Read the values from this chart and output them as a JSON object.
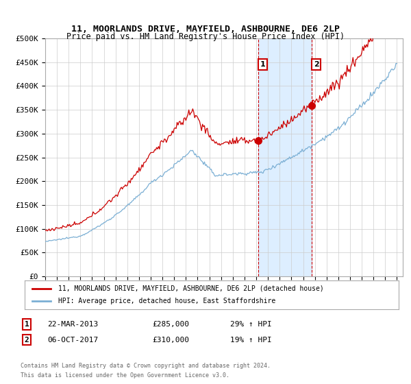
{
  "title": "11, MOORLANDS DRIVE, MAYFIELD, ASHBOURNE, DE6 2LP",
  "subtitle": "Price paid vs. HM Land Registry's House Price Index (HPI)",
  "ylabel_ticks": [
    "£0",
    "£50K",
    "£100K",
    "£150K",
    "£200K",
    "£250K",
    "£300K",
    "£350K",
    "£400K",
    "£450K",
    "£500K"
  ],
  "ytick_vals": [
    0,
    50000,
    100000,
    150000,
    200000,
    250000,
    300000,
    350000,
    400000,
    450000,
    500000
  ],
  "ylim": [
    0,
    500000
  ],
  "sale1_year": 2013,
  "sale1_month": 3,
  "sale1_price": 285000,
  "sale2_year": 2017,
  "sale2_month": 10,
  "sale2_price": 310000,
  "legend_house": "11, MOORLANDS DRIVE, MAYFIELD, ASHBOURNE, DE6 2LP (detached house)",
  "legend_hpi": "HPI: Average price, detached house, East Staffordshire",
  "footer1": "Contains HM Land Registry data © Crown copyright and database right 2024.",
  "footer2": "This data is licensed under the Open Government Licence v3.0.",
  "house_color": "#cc0000",
  "hpi_color": "#7bafd4",
  "highlight_color": "#ddeeff",
  "vline_color": "#cc0000",
  "grid_color": "#cccccc",
  "background_color": "#ffffff",
  "sale1_label": "22-MAR-2013",
  "sale1_price_str": "£285,000",
  "sale1_hpi_str": "29% ↑ HPI",
  "sale2_label": "06-OCT-2017",
  "sale2_price_str": "£310,000",
  "sale2_hpi_str": "19% ↑ HPI"
}
